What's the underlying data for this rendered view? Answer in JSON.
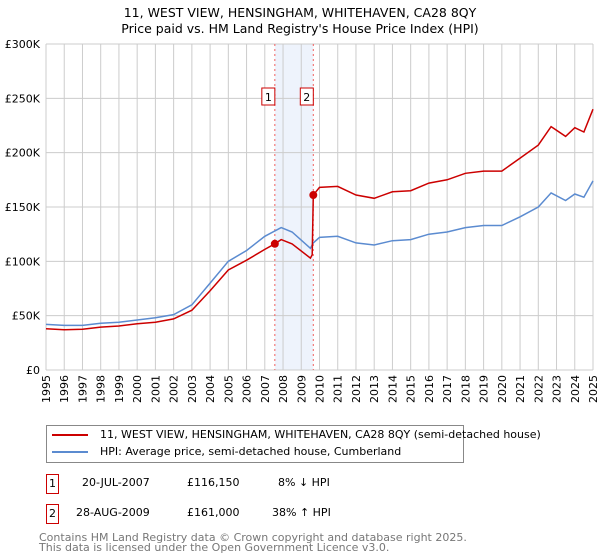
{
  "chart_data": {
    "type": "line",
    "title": "11, WEST VIEW, HENSINGHAM, WHITEHAVEN, CA28 8QY",
    "subtitle": "Price paid vs. HM Land Registry's House Price Index (HPI)",
    "xlim": [
      1995,
      2025
    ],
    "ylim": [
      0,
      300000
    ],
    "yticks": [
      {
        "v": 0,
        "label": "£0"
      },
      {
        "v": 50000,
        "label": "£50K"
      },
      {
        "v": 100000,
        "label": "£100K"
      },
      {
        "v": 150000,
        "label": "£150K"
      },
      {
        "v": 200000,
        "label": "£200K"
      },
      {
        "v": 250000,
        "label": "£250K"
      },
      {
        "v": 300000,
        "label": "£300K"
      }
    ],
    "xticks": [
      "1995",
      "1996",
      "1997",
      "1998",
      "1999",
      "2000",
      "2001",
      "2002",
      "2003",
      "2004",
      "2005",
      "2006",
      "2007",
      "2008",
      "2009",
      "2010",
      "2011",
      "2012",
      "2013",
      "2014",
      "2015",
      "2016",
      "2017",
      "2018",
      "2019",
      "2020",
      "2021",
      "2022",
      "2023",
      "2024",
      "2025"
    ],
    "grid": true,
    "shaded_range": [
      2007.55,
      2009.66
    ],
    "series": [
      {
        "name": "11, WEST VIEW, HENSINGHAM, WHITEHAVEN, CA28 8QY (semi-detached house)",
        "color": "#cc0000",
        "x": [
          1995,
          1996,
          1997,
          1998,
          1999,
          2000,
          2001,
          2002,
          2003,
          2004,
          2005,
          2006,
          2007,
          2007.55,
          2007.9,
          2008.5,
          2009.5,
          2009.6,
          2009.66,
          2010,
          2011,
          2012,
          2013,
          2014,
          2015,
          2016,
          2017,
          2018,
          2019,
          2020,
          2021,
          2022,
          2022.7,
          2023.5,
          2024,
          2024.5,
          2025
        ],
        "y": [
          38000,
          37000,
          37500,
          39500,
          40500,
          42500,
          44000,
          47000,
          55000,
          73000,
          92000,
          101000,
          111000,
          116150,
          120000,
          116000,
          103000,
          106000,
          161000,
          168000,
          169000,
          161000,
          158000,
          164000,
          165000,
          172000,
          175000,
          181000,
          183000,
          183000,
          195000,
          207000,
          224000,
          215000,
          223000,
          219000,
          240000
        ]
      },
      {
        "name": "HPI: Average price, semi-detached house, Cumberland",
        "color": "#5b8bd0",
        "x": [
          1995,
          1996,
          1997,
          1998,
          1999,
          2000,
          2001,
          2002,
          2003,
          2004,
          2005,
          2006,
          2007,
          2007.9,
          2008.5,
          2009.5,
          2009.66,
          2010,
          2011,
          2012,
          2013,
          2014,
          2015,
          2016,
          2017,
          2018,
          2019,
          2020,
          2021,
          2022,
          2022.7,
          2023.5,
          2024,
          2024.5,
          2025
        ],
        "y": [
          42000,
          41000,
          41000,
          43000,
          44000,
          46000,
          48000,
          51000,
          60000,
          80000,
          100000,
          110000,
          123000,
          131000,
          127000,
          112000,
          117000,
          122000,
          123000,
          117000,
          115000,
          119000,
          120000,
          125000,
          127000,
          131000,
          133000,
          133000,
          141000,
          150000,
          163000,
          156000,
          162000,
          159000,
          174000
        ]
      }
    ],
    "sales": [
      {
        "label": "1",
        "x": 2007.55,
        "y": 116150
      },
      {
        "label": "2",
        "x": 2009.66,
        "y": 161000
      }
    ]
  },
  "legend": {
    "property": "11, WEST VIEW, HENSINGHAM, WHITEHAVEN, CA28 8QY (semi-detached house)",
    "hpi": "HPI: Average price, semi-detached house, Cumberland"
  },
  "transactions": [
    {
      "num": "1",
      "date": "20-JUL-2007",
      "price": "£116,150",
      "hpi": "8% ↓ HPI"
    },
    {
      "num": "2",
      "date": "28-AUG-2009",
      "price": "£161,000",
      "hpi": "38% ↑ HPI"
    }
  ],
  "footer": [
    "Contains HM Land Registry data © Crown copyright and database right 2025.",
    "This data is licensed under the Open Government Licence v3.0."
  ]
}
